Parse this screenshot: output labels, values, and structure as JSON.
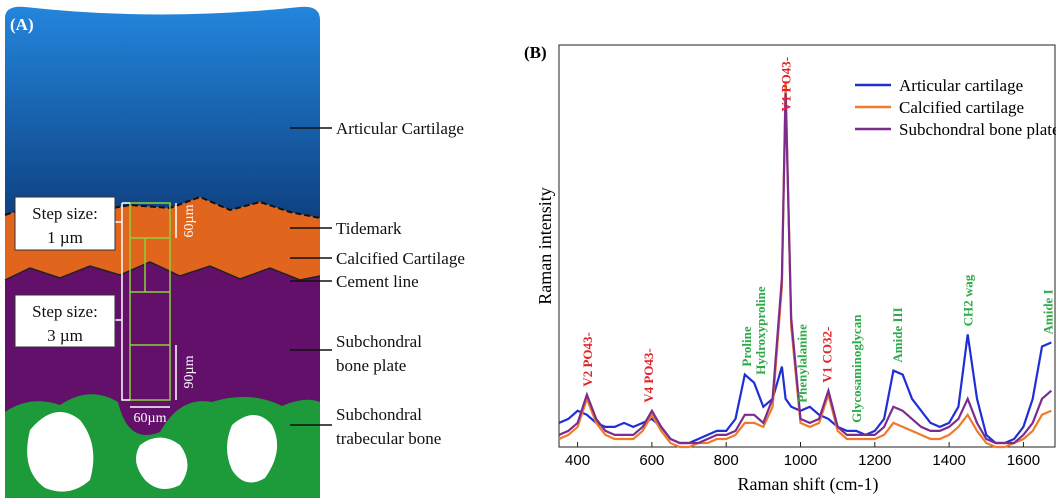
{
  "panel_a": {
    "tag": "(A)",
    "labels": [
      {
        "lines": [
          "Articular Cartilage"
        ]
      },
      {
        "lines": [
          "Tidemark"
        ]
      },
      {
        "lines": [
          "Calcified Cartilage"
        ]
      },
      {
        "lines": [
          "Cement line"
        ]
      },
      {
        "lines": [
          "Subchondral",
          "bone plate"
        ]
      },
      {
        "lines": [
          "Subchondral",
          "trabecular bone"
        ]
      }
    ],
    "step_boxes": [
      {
        "lines": [
          "Step size:",
          "1 µm"
        ]
      },
      {
        "lines": [
          "Step size:",
          "3 µm"
        ]
      }
    ],
    "dimensions": [
      "60µm",
      "90µm",
      "60µm"
    ]
  },
  "chart_data": {
    "type": "line",
    "tag": "(B)",
    "x_label": "Raman shift (cm-1)",
    "y_label": "Raman intensity",
    "xlim": [
      350,
      1685
    ],
    "xticks": [
      400,
      600,
      800,
      1000,
      1200,
      1400,
      1600
    ],
    "ylim": [
      0,
      1
    ],
    "legend": "upper right",
    "x": [
      350,
      375,
      400,
      425,
      450,
      475,
      500,
      525,
      550,
      575,
      600,
      625,
      650,
      675,
      700,
      725,
      750,
      775,
      800,
      825,
      850,
      875,
      900,
      925,
      950,
      960,
      975,
      1000,
      1025,
      1050,
      1075,
      1100,
      1125,
      1150,
      1175,
      1200,
      1225,
      1250,
      1275,
      1300,
      1325,
      1350,
      1375,
      1400,
      1425,
      1450,
      1475,
      1500,
      1525,
      1550,
      1575,
      1600,
      1625,
      1650,
      1675
    ],
    "series": [
      {
        "name": "Articular cartilage",
        "color": "#1f2fd6",
        "values": [
          0.06,
          0.07,
          0.09,
          0.08,
          0.06,
          0.05,
          0.05,
          0.06,
          0.05,
          0.06,
          0.07,
          0.05,
          0.02,
          0.01,
          0.01,
          0.02,
          0.03,
          0.04,
          0.04,
          0.07,
          0.18,
          0.16,
          0.1,
          0.12,
          0.2,
          0.12,
          0.1,
          0.09,
          0.1,
          0.08,
          0.07,
          0.05,
          0.04,
          0.04,
          0.03,
          0.04,
          0.07,
          0.19,
          0.18,
          0.12,
          0.09,
          0.06,
          0.05,
          0.06,
          0.1,
          0.28,
          0.12,
          0.03,
          0.01,
          0.01,
          0.02,
          0.05,
          0.12,
          0.25,
          0.26
        ]
      },
      {
        "name": "Calcified cartilage",
        "color": "#f07a2a",
        "values": [
          0.02,
          0.03,
          0.05,
          0.12,
          0.06,
          0.03,
          0.02,
          0.02,
          0.02,
          0.04,
          0.08,
          0.04,
          0.01,
          0.0,
          0.0,
          0.01,
          0.01,
          0.02,
          0.02,
          0.03,
          0.06,
          0.06,
          0.05,
          0.1,
          0.4,
          0.91,
          0.3,
          0.06,
          0.05,
          0.06,
          0.13,
          0.04,
          0.02,
          0.02,
          0.02,
          0.02,
          0.03,
          0.06,
          0.05,
          0.04,
          0.03,
          0.02,
          0.02,
          0.03,
          0.05,
          0.08,
          0.04,
          0.01,
          0.0,
          0.0,
          0.01,
          0.02,
          0.04,
          0.08,
          0.09
        ]
      },
      {
        "name": "Subchondral bone plate",
        "color": "#7b2d8e",
        "values": [
          0.03,
          0.04,
          0.06,
          0.13,
          0.07,
          0.04,
          0.03,
          0.03,
          0.03,
          0.05,
          0.09,
          0.05,
          0.02,
          0.01,
          0.01,
          0.01,
          0.02,
          0.03,
          0.03,
          0.04,
          0.08,
          0.08,
          0.06,
          0.12,
          0.42,
          0.88,
          0.32,
          0.07,
          0.06,
          0.07,
          0.14,
          0.05,
          0.03,
          0.03,
          0.03,
          0.03,
          0.05,
          0.1,
          0.09,
          0.07,
          0.05,
          0.04,
          0.04,
          0.05,
          0.07,
          0.12,
          0.06,
          0.02,
          0.01,
          0.01,
          0.01,
          0.03,
          0.06,
          0.12,
          0.14
        ]
      }
    ],
    "annotations": [
      {
        "x": 425,
        "text": "V2 PO43-",
        "color": "#e0262a"
      },
      {
        "x": 590,
        "text": "V4 PO43-",
        "color": "#e0262a"
      },
      {
        "x": 853,
        "text": "Proline",
        "color": "#2eaa4a"
      },
      {
        "x": 876,
        "text": "Hydroxyproline",
        "color": "#2eaa4a"
      },
      {
        "x": 960,
        "text": "V1 PO43-",
        "color": "#e0262a"
      },
      {
        "x": 1003,
        "text": "Phenylalanine",
        "color": "#2eaa4a"
      },
      {
        "x": 1070,
        "text": "V1 CO32-",
        "color": "#e0262a"
      },
      {
        "x": 1150,
        "text": "Glycosaminoglycan",
        "color": "#2eaa4a"
      },
      {
        "x": 1260,
        "text": "Amide III",
        "color": "#2eaa4a"
      },
      {
        "x": 1450,
        "text": "CH2 wag",
        "color": "#2eaa4a"
      },
      {
        "x": 1665,
        "text": "Amide I",
        "color": "#2eaa4a"
      }
    ]
  }
}
